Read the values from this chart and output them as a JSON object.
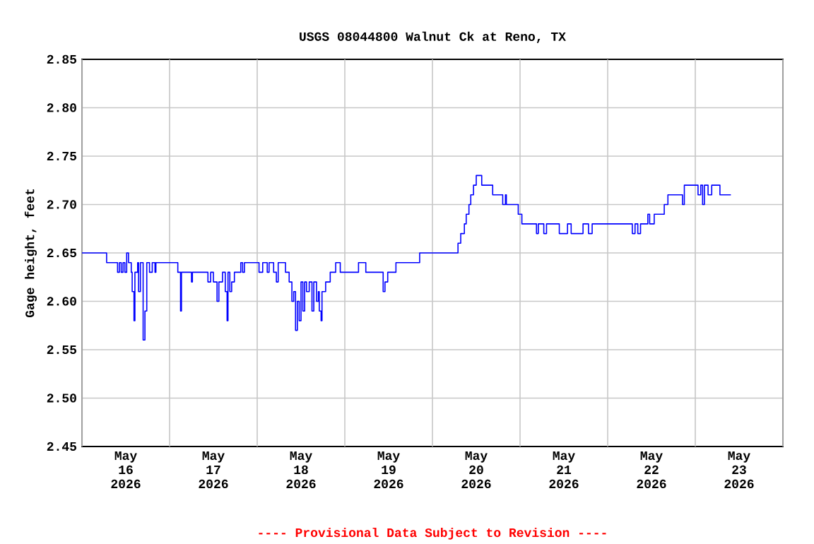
{
  "chart_data": {
    "type": "step",
    "title": "USGS 08044800 Walnut Ck at Reno, TX",
    "ylabel": "Gage height, feet",
    "annotations": [
      "---- Provisional Data Subject to Revision ----"
    ],
    "xlim": [
      "2026-05-16T00:00",
      "2026-05-24T00:00"
    ],
    "xticks": [
      {
        "value": "2026-05-16T00:00",
        "label": null
      },
      {
        "value": "2026-05-16T12:00",
        "label": "May 16 2026"
      },
      {
        "value": "2026-05-17T00:00",
        "label": null
      },
      {
        "value": "2026-05-17T12:00",
        "label": "May 17 2026"
      },
      {
        "value": "2026-05-18T00:00",
        "label": null
      },
      {
        "value": "2026-05-18T12:00",
        "label": "May 18 2026"
      },
      {
        "value": "2026-05-19T00:00",
        "label": null
      },
      {
        "value": "2026-05-19T12:00",
        "label": "May 19 2026"
      },
      {
        "value": "2026-05-20T00:00",
        "label": null
      },
      {
        "value": "2026-05-20T12:00",
        "label": "May 20 2026"
      },
      {
        "value": "2026-05-21T00:00",
        "label": null
      },
      {
        "value": "2026-05-21T12:00",
        "label": "May 21 2026"
      },
      {
        "value": "2026-05-22T00:00",
        "label": null
      },
      {
        "value": "2026-05-22T12:00",
        "label": "May 22 2026"
      },
      {
        "value": "2026-05-23T00:00",
        "label": null
      },
      {
        "value": "2026-05-23T12:00",
        "label": "May 23 2026"
      },
      {
        "value": "2026-05-24T00:00",
        "label": null
      }
    ],
    "ylim": [
      2.45,
      2.85
    ],
    "yticks": [
      {
        "value": 2.45,
        "label": "2.45"
      },
      {
        "value": 2.5,
        "label": "2.50"
      },
      {
        "value": 2.55,
        "label": "2.55"
      },
      {
        "value": 2.6,
        "label": "2.60"
      },
      {
        "value": 2.65,
        "label": "2.65"
      },
      {
        "value": 2.7,
        "label": "2.70"
      },
      {
        "value": 2.75,
        "label": "2.75"
      },
      {
        "value": 2.8,
        "label": "2.80"
      },
      {
        "value": 2.85,
        "label": "2.85"
      }
    ],
    "grid": true,
    "color": "#0000ff",
    "x": [
      "2026-05-16T00:00",
      "2026-05-16T06:45",
      "2026-05-16T09:45",
      "2026-05-16T10:15",
      "2026-05-16T10:45",
      "2026-05-16T11:15",
      "2026-05-16T11:45",
      "2026-05-16T12:15",
      "2026-05-16T12:45",
      "2026-05-16T13:30",
      "2026-05-16T13:45",
      "2026-05-16T14:15",
      "2026-05-16T14:30",
      "2026-05-16T15:15",
      "2026-05-16T15:30",
      "2026-05-16T16:00",
      "2026-05-16T16:45",
      "2026-05-16T17:15",
      "2026-05-16T17:45",
      "2026-05-16T18:30",
      "2026-05-16T19:15",
      "2026-05-16T20:00",
      "2026-05-16T20:15",
      "2026-05-17T02:15",
      "2026-05-17T03:00",
      "2026-05-17T03:15",
      "2026-05-17T06:00",
      "2026-05-17T06:15",
      "2026-05-17T10:30",
      "2026-05-17T11:15",
      "2026-05-17T12:00",
      "2026-05-17T13:00",
      "2026-05-17T13:30",
      "2026-05-17T14:30",
      "2026-05-17T15:15",
      "2026-05-17T15:45",
      "2026-05-17T16:00",
      "2026-05-17T16:30",
      "2026-05-17T17:00",
      "2026-05-17T17:45",
      "2026-05-17T19:30",
      "2026-05-17T20:00",
      "2026-05-17T20:30",
      "2026-05-18T00:30",
      "2026-05-18T01:30",
      "2026-05-18T02:45",
      "2026-05-18T03:15",
      "2026-05-18T04:30",
      "2026-05-18T05:15",
      "2026-05-18T05:45",
      "2026-05-18T07:45",
      "2026-05-18T08:45",
      "2026-05-18T09:30",
      "2026-05-18T10:00",
      "2026-05-18T10:30",
      "2026-05-18T11:00",
      "2026-05-18T11:30",
      "2026-05-18T12:00",
      "2026-05-18T12:30",
      "2026-05-18T13:00",
      "2026-05-18T13:30",
      "2026-05-18T14:15",
      "2026-05-18T15:00",
      "2026-05-18T15:30",
      "2026-05-18T16:15",
      "2026-05-18T16:45",
      "2026-05-18T17:00",
      "2026-05-18T17:30",
      "2026-05-18T17:45",
      "2026-05-18T18:45",
      "2026-05-18T20:00",
      "2026-05-18T21:30",
      "2026-05-18T22:45",
      "2026-05-19T03:45",
      "2026-05-19T05:45",
      "2026-05-19T10:30",
      "2026-05-19T11:00",
      "2026-05-19T11:45",
      "2026-05-19T14:00",
      "2026-05-19T20:30",
      "2026-05-20T07:00",
      "2026-05-20T07:45",
      "2026-05-20T08:45",
      "2026-05-20T09:15",
      "2026-05-20T10:00",
      "2026-05-20T10:30",
      "2026-05-20T11:15",
      "2026-05-20T12:00",
      "2026-05-20T13:30",
      "2026-05-20T16:30",
      "2026-05-20T19:15",
      "2026-05-20T20:00",
      "2026-05-20T20:15",
      "2026-05-20T23:30",
      "2026-05-21T00:30",
      "2026-05-21T04:30",
      "2026-05-21T05:00",
      "2026-05-21T06:30",
      "2026-05-21T07:15",
      "2026-05-21T10:45",
      "2026-05-21T13:00",
      "2026-05-21T14:00",
      "2026-05-21T17:15",
      "2026-05-21T18:45",
      "2026-05-21T19:45",
      "2026-05-22T06:45",
      "2026-05-22T07:30",
      "2026-05-22T08:15",
      "2026-05-22T09:00",
      "2026-05-22T11:00",
      "2026-05-22T11:30",
      "2026-05-22T12:45",
      "2026-05-22T15:30",
      "2026-05-22T16:30",
      "2026-05-22T20:30",
      "2026-05-22T21:00",
      "2026-05-23T00:45",
      "2026-05-23T01:30",
      "2026-05-23T02:00",
      "2026-05-23T02:30",
      "2026-05-23T03:30",
      "2026-05-23T04:30",
      "2026-05-23T06:45",
      "2026-05-23T09:45"
    ],
    "values": [
      2.65,
      2.64,
      2.63,
      2.64,
      2.63,
      2.64,
      2.63,
      2.65,
      2.64,
      2.63,
      2.61,
      2.58,
      2.63,
      2.64,
      2.61,
      2.64,
      2.56,
      2.59,
      2.64,
      2.63,
      2.64,
      2.63,
      2.64,
      2.63,
      2.59,
      2.63,
      2.62,
      2.63,
      2.62,
      2.63,
      2.62,
      2.6,
      2.62,
      2.63,
      2.61,
      2.58,
      2.63,
      2.61,
      2.62,
      2.63,
      2.64,
      2.63,
      2.64,
      2.63,
      2.64,
      2.63,
      2.64,
      2.63,
      2.62,
      2.64,
      2.63,
      2.62,
      2.6,
      2.61,
      2.57,
      2.6,
      2.58,
      2.62,
      2.59,
      2.62,
      2.61,
      2.62,
      2.59,
      2.62,
      2.6,
      2.61,
      2.59,
      2.58,
      2.61,
      2.62,
      2.63,
      2.64,
      2.63,
      2.64,
      2.63,
      2.61,
      2.62,
      2.63,
      2.64,
      2.65,
      2.66,
      2.67,
      2.68,
      2.69,
      2.7,
      2.71,
      2.72,
      2.73,
      2.72,
      2.71,
      2.7,
      2.71,
      2.7,
      2.69,
      2.68,
      2.67,
      2.68,
      2.67,
      2.68,
      2.67,
      2.68,
      2.67,
      2.68,
      2.67,
      2.68,
      2.67,
      2.68,
      2.67,
      2.68,
      2.69,
      2.68,
      2.69,
      2.7,
      2.71,
      2.7,
      2.72,
      2.71,
      2.72,
      2.7,
      2.72,
      2.71,
      2.72,
      2.71,
      2.71
    ]
  }
}
